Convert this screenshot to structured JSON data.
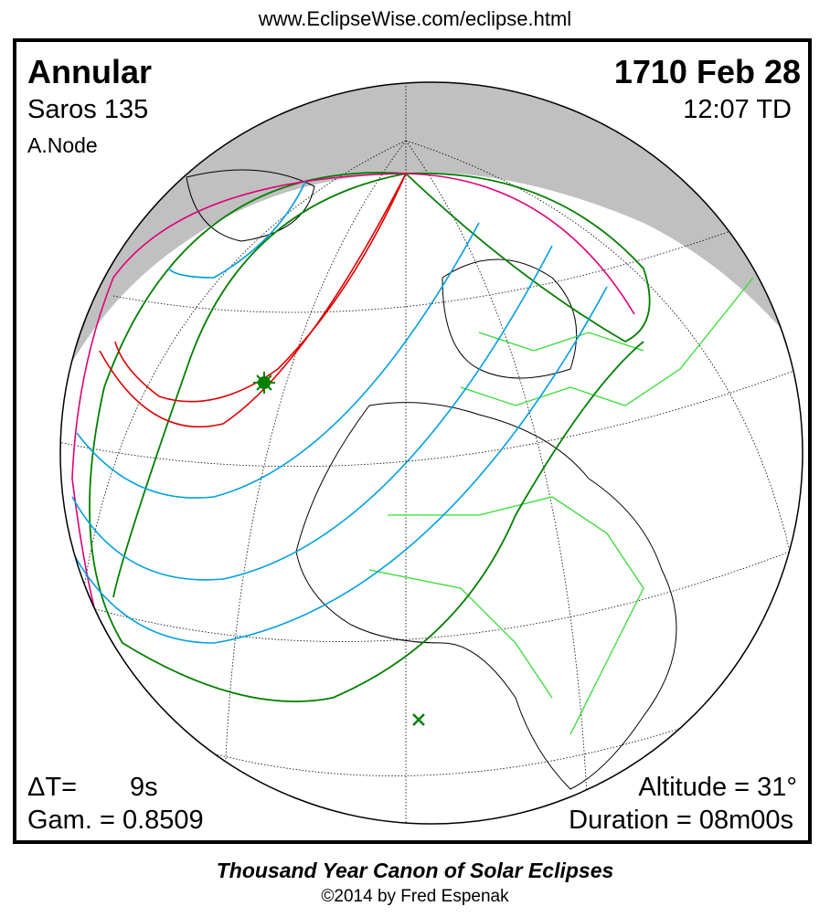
{
  "header": {
    "url": "www.EclipseWise.com/eclipse.html"
  },
  "eclipse": {
    "type": "Annular",
    "date": "1710 Feb 28",
    "saros": "Saros 135",
    "time": "12:07 TD",
    "node": "A.Node",
    "delta_t_label": "ΔT=",
    "delta_t_value": "9s",
    "gamma": "Gam. = 0.8509",
    "altitude": "Altitude = 31°",
    "duration": "Duration = 08m00s"
  },
  "footer": {
    "title": "Thousand Year Canon of Solar Eclipses",
    "copyright": "©2014 by Fred Espenak"
  },
  "colors": {
    "night": "#c0c0c0",
    "borders": "#33dd33",
    "central_path": "#e00000",
    "penumbral_limits": "#008000",
    "partial_curves": "#00a0e0",
    "rise_set": "#e0007a"
  },
  "markers": {
    "greatest_eclipse": "green-star-icon",
    "subsolar_point": "green-x-icon"
  }
}
